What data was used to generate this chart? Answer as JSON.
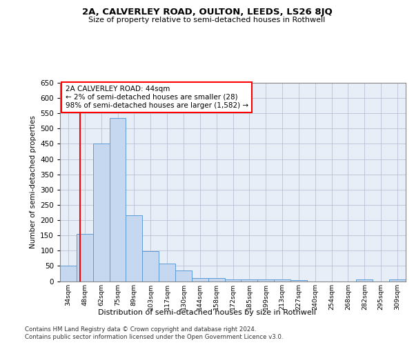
{
  "title_line1": "2A, CALVERLEY ROAD, OULTON, LEEDS, LS26 8JQ",
  "title_line2": "Size of property relative to semi-detached houses in Rothwell",
  "xlabel": "Distribution of semi-detached houses by size in Rothwell",
  "ylabel": "Number of semi-detached properties",
  "footer_line1": "Contains HM Land Registry data © Crown copyright and database right 2024.",
  "footer_line2": "Contains public sector information licensed under the Open Government Licence v3.0.",
  "annotation_title": "2A CALVERLEY ROAD: 44sqm",
  "annotation_line1": "← 2% of semi-detached houses are smaller (28)",
  "annotation_line2": "98% of semi-detached houses are larger (1,582) →",
  "bar_color": "#c5d8f0",
  "bar_edge_color": "#5b9bd5",
  "highlight_color": "#ff0000",
  "background_color": "#e8eef8",
  "grid_color": "#b0b8cc",
  "categories": [
    "34sqm",
    "48sqm",
    "62sqm",
    "75sqm",
    "89sqm",
    "103sqm",
    "117sqm",
    "130sqm",
    "144sqm",
    "158sqm",
    "172sqm",
    "185sqm",
    "199sqm",
    "213sqm",
    "227sqm",
    "240sqm",
    "254sqm",
    "268sqm",
    "282sqm",
    "295sqm",
    "309sqm"
  ],
  "values": [
    50,
    155,
    450,
    535,
    215,
    98,
    57,
    35,
    10,
    10,
    6,
    6,
    5,
    5,
    4,
    0,
    0,
    0,
    6,
    0,
    6
  ],
  "ylim": [
    0,
    650
  ],
  "yticks": [
    0,
    50,
    100,
    150,
    200,
    250,
    300,
    350,
    400,
    450,
    500,
    550,
    600,
    650
  ],
  "red_line_x": 0.71,
  "figsize": [
    6.0,
    5.0
  ],
  "dpi": 100
}
